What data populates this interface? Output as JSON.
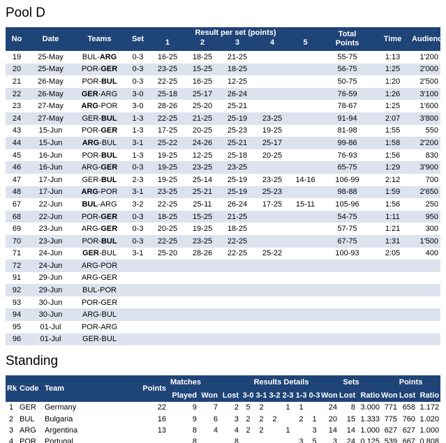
{
  "pool": {
    "title": "Pool D",
    "headers": {
      "no": "No",
      "date": "Date",
      "teams": "Teams",
      "set": "Set",
      "result_group": "Result per set (points)",
      "set_cols": [
        "1",
        "2",
        "3",
        "4",
        "5"
      ],
      "total_line1": "Total",
      "total_line2": "Points",
      "time": "Time",
      "audience": "Audience"
    },
    "rows": [
      {
        "no": "19",
        "date": "25-May",
        "home": "BUL",
        "away": "ARG",
        "winner": "away",
        "set": "0-3",
        "s1": "16-25",
        "s2": "18-25",
        "s3": "21-25",
        "s4": "",
        "s5": "",
        "total": "55-75",
        "time": "1:13",
        "audience": "1'200"
      },
      {
        "no": "20",
        "date": "25-May",
        "home": "POR",
        "away": "GER",
        "winner": "away",
        "set": "0-3",
        "s1": "23-25",
        "s2": "15-25",
        "s3": "18-25",
        "s4": "",
        "s5": "",
        "total": "56-75",
        "time": "1:25",
        "audience": "2'000"
      },
      {
        "no": "21",
        "date": "26-May",
        "home": "POR",
        "away": "BUL",
        "winner": "away",
        "set": "0-3",
        "s1": "22-25",
        "s2": "16-25",
        "s3": "12-25",
        "s4": "",
        "s5": "",
        "total": "50-75",
        "time": "1:20",
        "audience": "2'500"
      },
      {
        "no": "22",
        "date": "26-May",
        "home": "GER",
        "away": "ARG",
        "winner": "home",
        "set": "3-0",
        "s1": "25-18",
        "s2": "25-17",
        "s3": "26-24",
        "s4": "",
        "s5": "",
        "total": "76-59",
        "time": "1:26",
        "audience": "3'100"
      },
      {
        "no": "23",
        "date": "27-May",
        "home": "ARG",
        "away": "POR",
        "winner": "home",
        "set": "3-0",
        "s1": "28-26",
        "s2": "25-20",
        "s3": "25-21",
        "s4": "",
        "s5": "",
        "total": "78-67",
        "time": "1:25",
        "audience": "1'600"
      },
      {
        "no": "24",
        "date": "27-May",
        "home": "GER",
        "away": "BUL",
        "winner": "away",
        "set": "1-3",
        "s1": "22-25",
        "s2": "21-25",
        "s3": "25-19",
        "s4": "23-25",
        "s5": "",
        "total": "91-94",
        "time": "2:07",
        "audience": "3'800"
      },
      {
        "no": "43",
        "date": "15-Jun",
        "home": "POR",
        "away": "GER",
        "winner": "away",
        "set": "1-3",
        "s1": "17-25",
        "s2": "20-25",
        "s3": "25-23",
        "s4": "19-25",
        "s5": "",
        "total": "81-98",
        "time": "1:55",
        "audience": "550"
      },
      {
        "no": "44",
        "date": "15-Jun",
        "home": "ARG",
        "away": "BUL",
        "winner": "home",
        "set": "3-1",
        "s1": "25-22",
        "s2": "24-26",
        "s3": "25-21",
        "s4": "25-17",
        "s5": "",
        "total": "99-86",
        "time": "1:58",
        "audience": "2'200"
      },
      {
        "no": "45",
        "date": "16-Jun",
        "home": "POR",
        "away": "BUL",
        "winner": "away",
        "set": "1-3",
        "s1": "19-25",
        "s2": "12-25",
        "s3": "25-18",
        "s4": "20-25",
        "s5": "",
        "total": "76-93",
        "time": "1:56",
        "audience": "830"
      },
      {
        "no": "46",
        "date": "16-Jun",
        "home": "ARG",
        "away": "GER",
        "winner": "away",
        "set": "0-3",
        "s1": "19-25",
        "s2": "23-25",
        "s3": "23-25",
        "s4": "",
        "s5": "",
        "total": "65-75",
        "time": "1:29",
        "audience": "3'900"
      },
      {
        "no": "47",
        "date": "17-Jun",
        "home": "GER",
        "away": "BUL",
        "winner": "away",
        "set": "2-3",
        "s1": "19-25",
        "s2": "25-14",
        "s3": "25-19",
        "s4": "23-25",
        "s5": "14-16",
        "total": "106-99",
        "time": "2:12",
        "audience": "700"
      },
      {
        "no": "48",
        "date": "17-Jun",
        "home": "ARG",
        "away": "POR",
        "winner": "home",
        "set": "3-1",
        "s1": "23-25",
        "s2": "25-21",
        "s3": "25-19",
        "s4": "25-23",
        "s5": "",
        "total": "98-88",
        "time": "1:59",
        "audience": "2'650"
      },
      {
        "no": "67",
        "date": "22-Jun",
        "home": "BUL",
        "away": "ARG",
        "winner": "home",
        "set": "3-2",
        "s1": "22-25",
        "s2": "25-11",
        "s3": "26-24",
        "s4": "17-25",
        "s5": "15-11",
        "total": "105-96",
        "time": "1:56",
        "audience": "250"
      },
      {
        "no": "68",
        "date": "22-Jun",
        "home": "POR",
        "away": "GER",
        "winner": "away",
        "set": "0-3",
        "s1": "18-25",
        "s2": "15-25",
        "s3": "21-25",
        "s4": "",
        "s5": "",
        "total": "54-75",
        "time": "1:11",
        "audience": "950"
      },
      {
        "no": "69",
        "date": "23-Jun",
        "home": "ARG",
        "away": "GER",
        "winner": "away",
        "set": "0-3",
        "s1": "20-25",
        "s2": "19-25",
        "s3": "18-25",
        "s4": "",
        "s5": "",
        "total": "57-75",
        "time": "1:21",
        "audience": "300"
      },
      {
        "no": "70",
        "date": "23-Jun",
        "home": "POR",
        "away": "BUL",
        "winner": "away",
        "set": "0-3",
        "s1": "22-25",
        "s2": "23-25",
        "s3": "22-25",
        "s4": "",
        "s5": "",
        "total": "67-75",
        "time": "1:31",
        "audience": "1'500"
      },
      {
        "no": "71",
        "date": "24-Jun",
        "home": "GER",
        "away": "BUL",
        "winner": "home",
        "set": "3-1",
        "s1": "25-20",
        "s2": "28-26",
        "s3": "22-25",
        "s4": "25-22",
        "s5": "",
        "total": "100-93",
        "time": "2:05",
        "audience": "400"
      },
      {
        "no": "72",
        "date": "24-Jun",
        "home": "ARG",
        "away": "POR",
        "winner": "",
        "set": "",
        "s1": "",
        "s2": "",
        "s3": "",
        "s4": "",
        "s5": "",
        "total": "",
        "time": "",
        "audience": ""
      },
      {
        "no": "91",
        "date": "29-Jun",
        "home": "ARG",
        "away": "GER",
        "winner": "",
        "set": "",
        "s1": "",
        "s2": "",
        "s3": "",
        "s4": "",
        "s5": "",
        "total": "",
        "time": "",
        "audience": ""
      },
      {
        "no": "92",
        "date": "29-Jun",
        "home": "BUL",
        "away": "POR",
        "winner": "",
        "set": "",
        "s1": "",
        "s2": "",
        "s3": "",
        "s4": "",
        "s5": "",
        "total": "",
        "time": "",
        "audience": ""
      },
      {
        "no": "93",
        "date": "30-Jun",
        "home": "POR",
        "away": "GER",
        "winner": "",
        "set": "",
        "s1": "",
        "s2": "",
        "s3": "",
        "s4": "",
        "s5": "",
        "total": "",
        "time": "",
        "audience": ""
      },
      {
        "no": "94",
        "date": "30-Jun",
        "home": "ARG",
        "away": "BUL",
        "winner": "",
        "set": "",
        "s1": "",
        "s2": "",
        "s3": "",
        "s4": "",
        "s5": "",
        "total": "",
        "time": "",
        "audience": ""
      },
      {
        "no": "95",
        "date": "01-Jul",
        "home": "POR",
        "away": "ARG",
        "winner": "",
        "set": "",
        "s1": "",
        "s2": "",
        "s3": "",
        "s4": "",
        "s5": "",
        "total": "",
        "time": "",
        "audience": ""
      },
      {
        "no": "96",
        "date": "01-Jul",
        "home": "GER",
        "away": "BUL",
        "winner": "",
        "set": "",
        "s1": "",
        "s2": "",
        "s3": "",
        "s4": "",
        "s5": "",
        "total": "",
        "time": "",
        "audience": ""
      }
    ]
  },
  "standing": {
    "title": "Standing",
    "headers": {
      "rk": "Rk",
      "code": "Code",
      "team": "Team",
      "points": "Points",
      "matches_group": "Matches",
      "results_group": "Results Details",
      "sets_group": "Sets",
      "points_group": "Points",
      "played": "Played",
      "won": "Won",
      "lost": "Lost",
      "d30": "3-0",
      "d31": "3-1",
      "d32": "3-2",
      "d23": "2-3",
      "d13": "1-3",
      "d03": "0-3",
      "sets_won": "Won",
      "sets_lost": "Lost",
      "sets_ratio": "Ratio",
      "pts_won": "Won",
      "pts_lost": "Lost",
      "pts_ratio": "Ratio"
    },
    "rows": [
      {
        "rk": "1",
        "code": "GER",
        "team": "Germany",
        "points": "22",
        "played": "9",
        "won": "7",
        "lost": "2",
        "d30": "5",
        "d31": "2",
        "d32": "",
        "d23": "1",
        "d13": "1",
        "d03": "",
        "sets_won": "24",
        "sets_lost": "8",
        "sets_ratio": "3.000",
        "pts_won": "771",
        "pts_lost": "658",
        "pts_ratio": "1.172"
      },
      {
        "rk": "2",
        "code": "BUL",
        "team": "Bulgaria",
        "points": "16",
        "played": "9",
        "won": "6",
        "lost": "3",
        "d30": "2",
        "d31": "2",
        "d32": "2",
        "d23": "",
        "d13": "2",
        "d03": "1",
        "sets_won": "20",
        "sets_lost": "15",
        "sets_ratio": "1.333",
        "pts_won": "775",
        "pts_lost": "760",
        "pts_ratio": "1.020"
      },
      {
        "rk": "3",
        "code": "ARG",
        "team": "Argentina",
        "points": "13",
        "played": "8",
        "won": "4",
        "lost": "4",
        "d30": "2",
        "d31": "2",
        "d32": "",
        "d23": "1",
        "d13": "",
        "d03": "3",
        "sets_won": "14",
        "sets_lost": "14",
        "sets_ratio": "1.000",
        "pts_won": "627",
        "pts_lost": "627",
        "pts_ratio": "1.000"
      },
      {
        "rk": "4",
        "code": "POR",
        "team": "Portugal",
        "points": "",
        "played": "8",
        "won": "",
        "lost": "8",
        "d30": "",
        "d31": "",
        "d32": "",
        "d23": "",
        "d13": "3",
        "d03": "5",
        "sets_won": "3",
        "sets_lost": "24",
        "sets_ratio": "0.125",
        "pts_won": "539",
        "pts_lost": "667",
        "pts_ratio": "0.808"
      }
    ]
  },
  "colors": {
    "header_bg": "#1F4477",
    "stripe_bg": "#DCE3EE",
    "header_text": "#FFFFFF",
    "body_text": "#000000"
  }
}
